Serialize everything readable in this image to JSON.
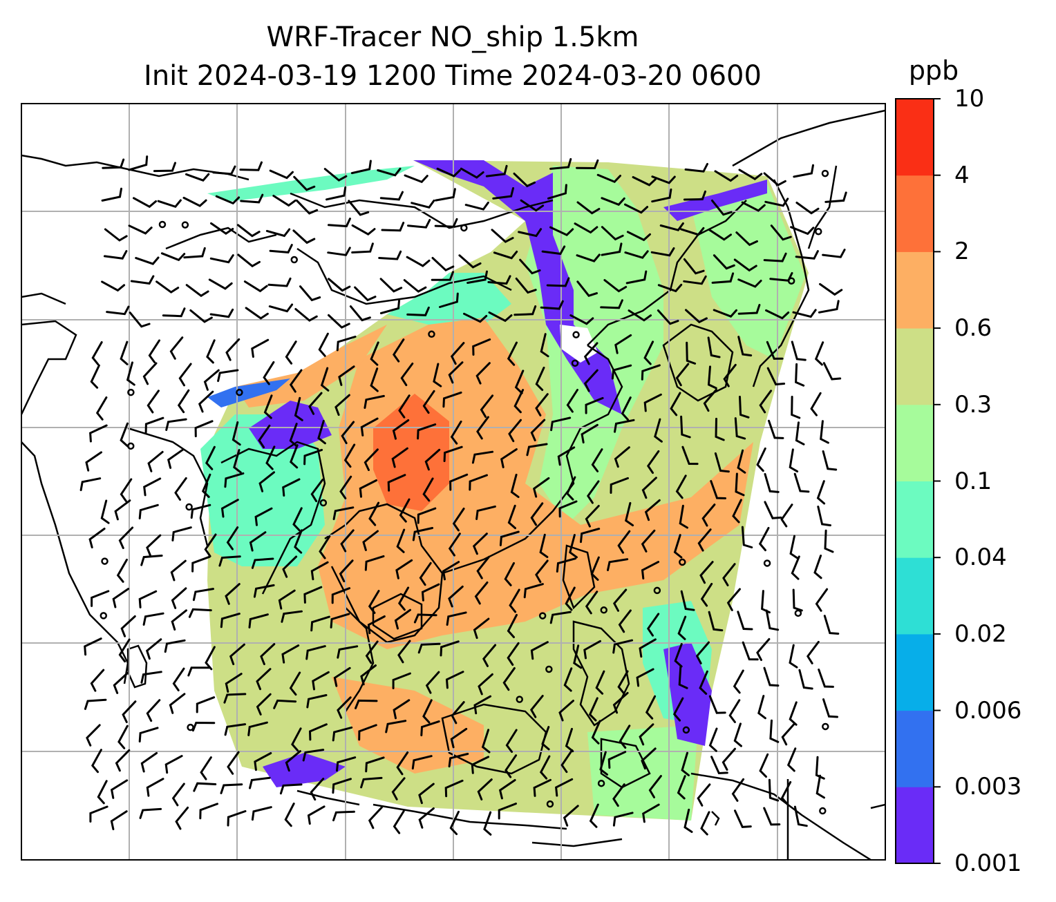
{
  "title": {
    "line1": "WRF-Tracer NO_ship 1.5km",
    "line2": "Init 2024-03-19 1200 Time 2024-03-20 0600"
  },
  "colorbar": {
    "unit": "ppb",
    "labels": [
      "10",
      "4",
      "2",
      "0.6",
      "0.3",
      "0.1",
      "0.04",
      "0.02",
      "0.006",
      "0.003",
      "0.001"
    ],
    "colors": [
      "#6a2cf7",
      "#3271f0",
      "#07aee9",
      "#2edfd5",
      "#6cfbc0",
      "#a6fb9b",
      "#cddf86",
      "#fdaf63",
      "#fe7139",
      "#fa2f15"
    ]
  }
}
